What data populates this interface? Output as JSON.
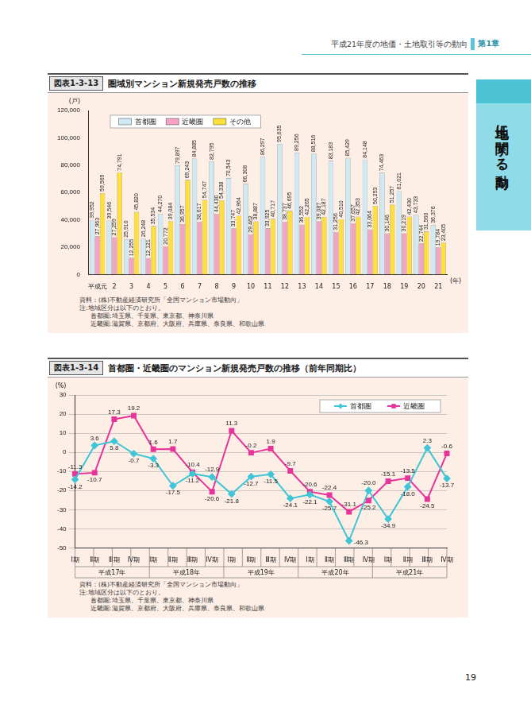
{
  "header": {
    "title": "平成21年度の地価・土地取引等の動向",
    "chapter": "第1章"
  },
  "side_tab": "土地に関する動向",
  "page_number": 19,
  "chart_data": [
    {
      "type": "bar",
      "figure_number": "図表1-3-13",
      "title": "圏域別マンション新規発売戸数の推移",
      "y_label": "(戸)",
      "x_label": "(年)",
      "categories": [
        "平成元",
        "2",
        "3",
        "4",
        "5",
        "6",
        "7",
        "8",
        "9",
        "10",
        "11",
        "12",
        "13",
        "14",
        "15",
        "16",
        "17",
        "18",
        "19",
        "20",
        "21"
      ],
      "series": [
        {
          "name": "首都圏",
          "color": "#cfe9f5",
          "values": [
            39952,
            39546,
            25910,
            26248,
            44270,
            79897,
            84885,
            82795,
            70543,
            66308,
            86297,
            95635,
            89256,
            88516,
            83183,
            85429,
            84148,
            74463,
            61021,
            43733,
            36376
          ],
          "value_labels": [
            "39,952",
            "39,546",
            "25,910",
            "26,248",
            "44,270",
            "79,897",
            "84,885",
            "82,795",
            "70,543",
            "66,308",
            "86,297",
            "95,635",
            "89,256",
            "88,516",
            "83,183",
            "85,429",
            "84,148",
            "74,463",
            "61,021",
            "43,733",
            "36,376"
          ]
        },
        {
          "name": "近畿圏",
          "color": "#f4a3c4",
          "values": [
            27963,
            27259,
            12255,
            12121,
            20772,
            36957,
            38617,
            44430,
            33747,
            29462,
            33925,
            38737,
            36552,
            39087,
            31256,
            37657,
            33064,
            30146,
            30219,
            22744,
            19784
          ],
          "value_labels": [
            "27,963",
            "27,259",
            "12,255",
            "12,121",
            "20,772",
            "36,957",
            "38,617",
            "44,430",
            "33,747",
            "29,462",
            "33,925",
            "38,737",
            "36,552",
            "39,087",
            "31,256",
            "37,657",
            "33,064",
            "30,146",
            "30,219",
            "22,744",
            "19,784"
          ]
        },
        {
          "name": "その他",
          "color": "#ffe03a",
          "values": [
            59569,
            74791,
            45820,
            35534,
            39084,
            69243,
            54747,
            54338,
            42964,
            38887,
            40717,
            46695,
            42265,
            42187,
            40510,
            42353,
            50253,
            51257,
            42430,
            31560,
            23405
          ],
          "value_labels": [
            "59,569",
            "74,791",
            "45,820",
            "35,534",
            "39,084",
            "69,243",
            "54,747",
            "54,338",
            "42,964",
            "38,887",
            "40,717",
            "46,695",
            "42,265",
            "42,187",
            "40,510",
            "42,353",
            "50,253",
            "51,257",
            "42,430",
            "31,560",
            "23,405"
          ]
        }
      ],
      "ylim": [
        0,
        120000
      ],
      "yticks": [
        0,
        {
          "value": 20000,
          "label": "20,000"
        },
        {
          "value": 40000,
          "label": "40,000"
        },
        {
          "value": 60000,
          "label": "60,000"
        },
        {
          "value": 80000,
          "label": "80,000"
        },
        {
          "value": 100000,
          "label": "100,000"
        },
        {
          "value": 120000,
          "label": "120,000"
        }
      ],
      "grid": false,
      "legend": "upper left",
      "data_labels": true,
      "notes": [
        "資料：(株)不動産経済研究所「全国マンション市場動向」",
        "注:地域区分は以下のとおり。",
        "首都圏:埼玉県、千葉県、東京都、神奈川県",
        "近畿圏:滋賀県、京都府、大阪府、兵庫県、奈良県、和歌山県"
      ]
    },
    {
      "type": "line",
      "figure_number": "図表1-3-14",
      "title": "首都圏・近畿圏のマンション新規発売戸数の推移（前年同期比）",
      "y_label": "(%)",
      "categories": [
        "Ⅰ期",
        "Ⅱ期",
        "Ⅲ期",
        "Ⅳ期",
        "Ⅰ期",
        "Ⅱ期",
        "Ⅲ期",
        "Ⅳ期",
        "Ⅰ期",
        "Ⅱ期",
        "Ⅲ期",
        "Ⅳ期",
        "Ⅰ期",
        "Ⅱ期",
        "Ⅲ期",
        "Ⅳ期",
        "Ⅰ期",
        "Ⅱ期",
        "Ⅲ期",
        "Ⅳ期"
      ],
      "x_groups": [
        "平成17年",
        "平成18年",
        "平成19年",
        "平成20年",
        "平成21年"
      ],
      "series": [
        {
          "name": "首都圏",
          "color": "#3ec6d6",
          "marker": "diamond",
          "values": [
            -14.2,
            3.6,
            5.8,
            -0.7,
            -3.3,
            -17.5,
            -11.2,
            -12.9,
            -21.8,
            -12.7,
            -11.5,
            -24.1,
            -22.1,
            -25.7,
            -46.3,
            -20.0,
            -34.9,
            -18.0,
            2.3,
            -13.7
          ],
          "value_labels": [
            "-14.2",
            "3.6",
            "5.8",
            "-0.7",
            "-3.3",
            "-17.5",
            "-11.2",
            "-12.9",
            "-21.8",
            "-12.7",
            "-11.5",
            "-24.1",
            "-22.1",
            "-25.7",
            "-46.3",
            "-20.0",
            "-34.9",
            "-18.0",
            "2.3",
            "-13.7"
          ]
        },
        {
          "name": "近畿圏",
          "color": "#e8349a",
          "marker": "square",
          "values": [
            -11.3,
            -10.7,
            17.3,
            19.2,
            1.6,
            1.7,
            -10.4,
            -20.6,
            11.3,
            -0.2,
            1.9,
            -9.7,
            -20.6,
            -22.4,
            -31.1,
            -25.2,
            -15.1,
            -13.5,
            -24.5,
            -0.6
          ],
          "value_labels": [
            "-11.3",
            "-10.7",
            "17.3",
            "19.2",
            "1.6",
            "1.7",
            "-10.4",
            "-20.6",
            "11.3",
            "-0.2",
            "1.9",
            "-9.7",
            "-20.6",
            "-22.4",
            "-31.1",
            "-25.2",
            "-15.1",
            "-13.5",
            "-24.5",
            "-0.6"
          ]
        }
      ],
      "ylim": [
        -50,
        30
      ],
      "yticks": [
        -50,
        -40,
        -30,
        -20,
        -10,
        0,
        10,
        20,
        30
      ],
      "grid": true,
      "legend": "upper right",
      "data_labels": true,
      "notes": [
        "資料：(株)不動産経済研究所「全国マンション市場動向」",
        "注:地域区分は以下のとおり。",
        "首都圏:埼玉県、千葉県、東京都、神奈川県",
        "近畿圏:滋賀県、京都府、大阪府、兵庫県、奈良県、和歌山県"
      ]
    }
  ]
}
